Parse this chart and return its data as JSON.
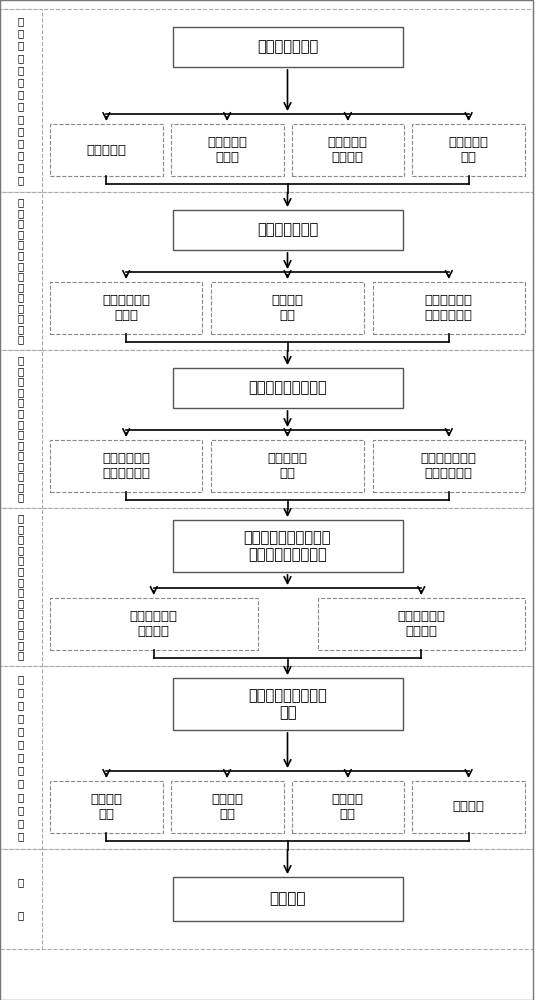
{
  "bg_color": "#ffffff",
  "sections": [
    {
      "label": "地下停车系统出入口数量的确定",
      "top_box": "系统出入口数量",
      "sub_boxes": [
        "系统总泊数",
        "系统停车单\n元数量",
        "高峰时段系\n统车辆数",
        "出入口繁忙\n程度"
      ],
      "n_sub": 4,
      "top_box_dashed": false
    },
    {
      "label": "地下停车系统出入口位置的确定",
      "top_box": "系统出入口位置",
      "sub_boxes": [
        "出入口连接道\n路等级",
        "系统等级\n规模",
        "出入口处动态\n交通组织状况"
      ],
      "n_sub": 3,
      "top_box_dashed": false
    },
    {
      "label": "地下停车系统出入口接驳处长度",
      "top_box": "系统出入口接驳长度",
      "sub_boxes": [
        "出入口接驳处\n交通组织方式",
        "车道数量与\n间距",
        "出入口接驳处连\n接角度和宽度"
      ],
      "n_sub": 3,
      "top_box_dashed": false
    },
    {
      "label": "地下停车系统内部车行通道长度",
      "top_box": "系统内部车行通道交通\n流线组织方式与长度",
      "sub_boxes": [
        "系统内部主要\n车行通道",
        "系统内部次要\n车行通道"
      ],
      "n_sub": 2,
      "top_box_dashed": false
    },
    {
      "label": "地下停车系统出入口评价指标",
      "top_box": "系统出入口交通仿真\n模型",
      "sub_boxes": [
        "平均行程\n时间",
        "平均延误\n时间",
        "平均排队\n长度",
        "停车次数"
      ],
      "n_sub": 4,
      "top_box_dashed": false
    },
    {
      "label": "成果",
      "top_box": "实例应用",
      "sub_boxes": [],
      "n_sub": 0,
      "top_box_dashed": false
    }
  ]
}
